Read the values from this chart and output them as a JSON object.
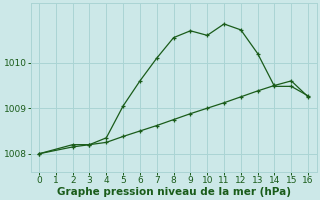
{
  "xlabel": "Graphe pression niveau de la mer (hPa)",
  "xlim": [
    -0.5,
    16.5
  ],
  "ylim": [
    1007.6,
    1011.3
  ],
  "yticks": [
    1008,
    1009,
    1010
  ],
  "xticks": [
    0,
    1,
    2,
    3,
    4,
    5,
    6,
    7,
    8,
    9,
    10,
    11,
    12,
    13,
    14,
    15,
    16
  ],
  "bg_color": "#cce8e8",
  "grid_color": "#aad4d4",
  "line_color": "#1a5c1a",
  "line1_x": [
    0,
    2,
    3,
    4,
    5,
    6,
    7,
    8,
    9,
    10,
    11,
    12,
    13,
    14,
    15,
    16
  ],
  "line1_y": [
    1008.0,
    1008.15,
    1008.2,
    1008.25,
    1008.38,
    1008.5,
    1008.62,
    1008.75,
    1008.88,
    1009.0,
    1009.12,
    1009.25,
    1009.38,
    1009.5,
    1009.6,
    1009.25
  ],
  "line2_x": [
    0,
    2,
    3,
    4,
    5,
    6,
    7,
    8,
    9,
    10,
    11,
    12,
    13,
    14,
    15,
    16
  ],
  "line2_y": [
    1008.0,
    1008.2,
    1008.2,
    1008.35,
    1009.05,
    1009.6,
    1010.1,
    1010.55,
    1010.7,
    1010.6,
    1010.85,
    1010.72,
    1010.2,
    1009.48,
    1009.48,
    1009.27
  ],
  "font_color": "#1a5c1a",
  "tick_fontsize": 6.5,
  "xlabel_fontsize": 7.5
}
